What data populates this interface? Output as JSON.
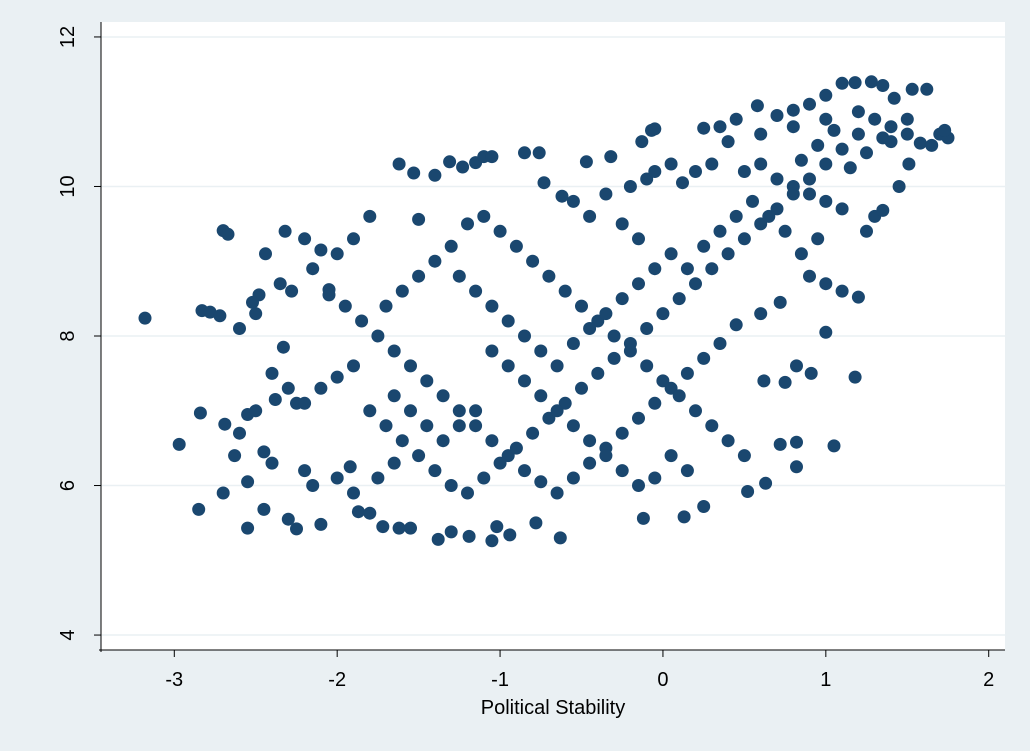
{
  "chart_data": {
    "type": "scatter",
    "title": "",
    "xlabel": "Political Stability",
    "ylabel": "",
    "xlim": [
      -3.45,
      2.1
    ],
    "ylim": [
      3.8,
      12.2
    ],
    "xticks": [
      -3,
      -2,
      -1,
      0,
      1,
      2
    ],
    "yticks": [
      4,
      6,
      8,
      10,
      12
    ],
    "xtick_labels": [
      "-3",
      "-2",
      "-1",
      "0",
      "1",
      "2"
    ],
    "ytick_labels": [
      "4",
      "6",
      "8",
      "10",
      "12"
    ],
    "grid": "horizontal",
    "legend": "none",
    "colors": {
      "background": "#eaf0f3",
      "plot_background": "#ffffff",
      "marker": "#1a476f",
      "grid": "#eaf0f3"
    },
    "series": [
      {
        "points": [
          [
            -3.18,
            8.24
          ],
          [
            -2.97,
            6.55
          ],
          [
            -2.85,
            5.68
          ],
          [
            -2.83,
            8.34
          ],
          [
            -2.78,
            8.32
          ],
          [
            -2.72,
            8.27
          ],
          [
            -2.7,
            9.41
          ],
          [
            -2.67,
            9.36
          ],
          [
            -2.84,
            6.97
          ],
          [
            -2.69,
            6.82
          ],
          [
            -2.55,
            6.95
          ],
          [
            -2.63,
            6.4
          ],
          [
            -2.55,
            6.05
          ],
          [
            -2.7,
            5.9
          ],
          [
            -2.55,
            5.43
          ],
          [
            -2.45,
            5.68
          ],
          [
            -2.38,
            7.15
          ],
          [
            -2.45,
            6.45
          ],
          [
            -2.33,
            7.85
          ],
          [
            -2.25,
            7.1
          ],
          [
            -2.28,
            8.6
          ],
          [
            -2.48,
            8.55
          ],
          [
            -2.52,
            8.45
          ],
          [
            -2.44,
            9.1
          ],
          [
            -2.32,
            9.4
          ],
          [
            -2.2,
            9.3
          ],
          [
            -2.1,
            9.15
          ],
          [
            -2.05,
            8.62
          ],
          [
            -2.25,
            5.42
          ],
          [
            -2.3,
            5.55
          ],
          [
            -2.15,
            6.0
          ],
          [
            -2.1,
            5.48
          ],
          [
            -1.92,
            6.25
          ],
          [
            -1.87,
            5.65
          ],
          [
            -1.8,
            5.63
          ],
          [
            -1.72,
            5.45
          ],
          [
            -1.62,
            5.43
          ],
          [
            -1.55,
            5.43
          ],
          [
            -1.62,
            10.3
          ],
          [
            -1.53,
            10.18
          ],
          [
            -1.5,
            9.56
          ],
          [
            -1.4,
            10.15
          ],
          [
            -1.31,
            10.33
          ],
          [
            -1.23,
            10.26
          ],
          [
            -1.15,
            10.32
          ],
          [
            -1.1,
            10.4
          ],
          [
            -1.05,
            10.4
          ],
          [
            -0.85,
            10.45
          ],
          [
            -0.76,
            10.45
          ],
          [
            -0.73,
            10.05
          ],
          [
            -0.62,
            9.87
          ],
          [
            -0.47,
            10.33
          ],
          [
            -0.32,
            10.4
          ],
          [
            -0.13,
            10.6
          ],
          [
            -0.07,
            10.75
          ],
          [
            -0.05,
            10.77
          ],
          [
            -1.38,
            5.28
          ],
          [
            -1.3,
            5.38
          ],
          [
            -1.19,
            5.32
          ],
          [
            -1.05,
            5.26
          ],
          [
            -0.94,
            5.34
          ],
          [
            -0.78,
            5.5
          ],
          [
            -0.63,
            5.3
          ],
          [
            -1.02,
            5.45
          ],
          [
            -0.12,
            5.56
          ],
          [
            0.13,
            5.58
          ],
          [
            0.25,
            5.72
          ],
          [
            0.52,
            5.92
          ],
          [
            0.63,
            6.03
          ],
          [
            0.72,
            6.55
          ],
          [
            0.82,
            6.25
          ],
          [
            0.82,
            6.58
          ],
          [
            1.05,
            6.53
          ],
          [
            0.62,
            7.4
          ],
          [
            0.75,
            7.38
          ],
          [
            0.82,
            7.6
          ],
          [
            0.91,
            7.5
          ],
          [
            1.0,
            8.05
          ],
          [
            1.18,
            7.45
          ],
          [
            1.2,
            8.52
          ],
          [
            1.3,
            9.6
          ],
          [
            1.35,
            9.68
          ],
          [
            1.25,
            9.4
          ],
          [
            1.45,
            10.0
          ],
          [
            1.51,
            10.3
          ],
          [
            1.58,
            10.58
          ],
          [
            1.62,
            11.3
          ],
          [
            1.53,
            11.3
          ],
          [
            1.42,
            11.18
          ],
          [
            1.35,
            11.35
          ],
          [
            1.28,
            11.4
          ],
          [
            1.18,
            11.39
          ],
          [
            1.1,
            11.38
          ],
          [
            1.0,
            11.22
          ],
          [
            0.9,
            11.1
          ],
          [
            0.8,
            11.02
          ],
          [
            0.7,
            10.95
          ],
          [
            0.58,
            11.08
          ],
          [
            0.45,
            10.9
          ],
          [
            0.35,
            10.8
          ],
          [
            0.25,
            10.78
          ],
          [
            1.7,
            10.7
          ],
          [
            1.75,
            10.65
          ],
          [
            1.73,
            10.75
          ],
          [
            1.65,
            10.55
          ],
          [
            0.3,
            10.3
          ],
          [
            0.2,
            10.2
          ],
          [
            0.12,
            10.05
          ],
          [
            -0.2,
            10.0
          ],
          [
            -0.1,
            10.1
          ],
          [
            -0.05,
            10.2
          ],
          [
            0.05,
            10.3
          ],
          [
            0.5,
            10.2
          ],
          [
            0.6,
            10.3
          ],
          [
            0.7,
            10.1
          ],
          [
            0.8,
            10.0
          ],
          [
            0.9,
            9.9
          ],
          [
            1.0,
            9.8
          ],
          [
            1.1,
            9.7
          ],
          [
            0.95,
            9.3
          ],
          [
            0.85,
            9.1
          ],
          [
            0.9,
            8.8
          ],
          [
            1.0,
            8.7
          ],
          [
            1.1,
            8.6
          ],
          [
            0.72,
            8.45
          ],
          [
            0.6,
            8.3
          ],
          [
            0.45,
            8.15
          ],
          [
            0.35,
            7.9
          ],
          [
            0.25,
            7.7
          ],
          [
            0.15,
            7.5
          ],
          [
            0.05,
            7.3
          ],
          [
            -0.05,
            7.1
          ],
          [
            -0.15,
            6.9
          ],
          [
            -0.25,
            6.7
          ],
          [
            -0.35,
            6.5
          ],
          [
            -0.45,
            6.3
          ],
          [
            -0.55,
            6.1
          ],
          [
            -0.65,
            5.9
          ],
          [
            -0.75,
            6.05
          ],
          [
            -0.85,
            6.2
          ],
          [
            -0.95,
            6.4
          ],
          [
            -1.05,
            6.6
          ],
          [
            -1.15,
            6.8
          ],
          [
            -1.25,
            7.0
          ],
          [
            -1.35,
            7.2
          ],
          [
            -1.45,
            7.4
          ],
          [
            -1.55,
            7.6
          ],
          [
            -1.65,
            7.8
          ],
          [
            -1.75,
            8.0
          ],
          [
            -1.85,
            8.2
          ],
          [
            -1.95,
            8.4
          ],
          [
            -2.05,
            8.55
          ],
          [
            -1.9,
            7.6
          ],
          [
            -2.0,
            7.45
          ],
          [
            -2.1,
            7.3
          ],
          [
            -2.2,
            7.1
          ],
          [
            -1.8,
            7.0
          ],
          [
            -1.7,
            6.8
          ],
          [
            -1.6,
            6.6
          ],
          [
            -1.5,
            6.4
          ],
          [
            -1.4,
            6.2
          ],
          [
            -1.3,
            6.0
          ],
          [
            -1.2,
            5.9
          ],
          [
            -1.1,
            6.1
          ],
          [
            -1.0,
            6.3
          ],
          [
            -0.9,
            6.5
          ],
          [
            -0.8,
            6.7
          ],
          [
            -0.7,
            6.9
          ],
          [
            -0.6,
            7.1
          ],
          [
            -0.5,
            7.3
          ],
          [
            -0.4,
            7.5
          ],
          [
            -0.3,
            7.7
          ],
          [
            -0.2,
            7.9
          ],
          [
            -0.1,
            8.1
          ],
          [
            0.0,
            8.3
          ],
          [
            0.1,
            8.5
          ],
          [
            0.2,
            8.7
          ],
          [
            0.3,
            8.9
          ],
          [
            0.4,
            9.1
          ],
          [
            0.5,
            9.3
          ],
          [
            0.6,
            9.5
          ],
          [
            0.7,
            9.7
          ],
          [
            0.8,
            9.9
          ],
          [
            0.9,
            10.1
          ],
          [
            1.0,
            10.3
          ],
          [
            1.1,
            10.5
          ],
          [
            1.2,
            10.7
          ],
          [
            1.3,
            10.9
          ],
          [
            1.4,
            10.8
          ],
          [
            1.5,
            10.7
          ],
          [
            -0.9,
            9.2
          ],
          [
            -0.8,
            9.0
          ],
          [
            -0.7,
            8.8
          ],
          [
            -0.6,
            8.6
          ],
          [
            -0.5,
            8.4
          ],
          [
            -0.4,
            8.2
          ],
          [
            -0.3,
            8.0
          ],
          [
            -0.2,
            7.8
          ],
          [
            -0.1,
            7.6
          ],
          [
            0.0,
            7.4
          ],
          [
            0.1,
            7.2
          ],
          [
            0.2,
            7.0
          ],
          [
            0.3,
            6.8
          ],
          [
            0.4,
            6.6
          ],
          [
            0.5,
            6.4
          ],
          [
            -1.0,
            9.4
          ],
          [
            -1.1,
            9.6
          ],
          [
            -1.2,
            9.5
          ],
          [
            -1.3,
            9.2
          ],
          [
            -1.4,
            9.0
          ],
          [
            -1.5,
            8.8
          ],
          [
            -1.6,
            8.6
          ],
          [
            -1.7,
            8.4
          ],
          [
            -1.8,
            9.6
          ],
          [
            -1.9,
            9.3
          ],
          [
            -2.0,
            9.1
          ],
          [
            -2.15,
            8.9
          ],
          [
            -2.35,
            8.7
          ],
          [
            -2.5,
            8.3
          ],
          [
            -2.6,
            8.1
          ],
          [
            -2.4,
            7.5
          ],
          [
            -2.3,
            7.3
          ],
          [
            -2.5,
            7.0
          ],
          [
            -2.6,
            6.7
          ],
          [
            -2.4,
            6.3
          ],
          [
            -2.2,
            6.2
          ],
          [
            -2.0,
            6.1
          ],
          [
            -1.9,
            5.9
          ],
          [
            -1.75,
            6.1
          ],
          [
            -1.65,
            6.3
          ],
          [
            -0.35,
            9.9
          ],
          [
            -0.55,
            9.8
          ],
          [
            -0.45,
            9.6
          ],
          [
            -0.25,
            9.5
          ],
          [
            -0.15,
            9.3
          ],
          [
            0.05,
            9.1
          ],
          [
            0.15,
            8.9
          ],
          [
            0.25,
            9.2
          ],
          [
            0.35,
            9.4
          ],
          [
            0.45,
            9.6
          ],
          [
            0.55,
            9.8
          ],
          [
            0.65,
            9.6
          ],
          [
            0.75,
            9.4
          ],
          [
            -0.65,
            7.6
          ],
          [
            -0.75,
            7.8
          ],
          [
            -0.85,
            8.0
          ],
          [
            -0.95,
            8.2
          ],
          [
            -1.05,
            8.4
          ],
          [
            -1.15,
            8.6
          ],
          [
            -1.25,
            8.8
          ],
          [
            -0.55,
            7.9
          ],
          [
            -0.45,
            8.1
          ],
          [
            -0.35,
            8.3
          ],
          [
            -0.25,
            8.5
          ],
          [
            -0.15,
            8.7
          ],
          [
            -0.05,
            8.9
          ],
          [
            0.05,
            6.4
          ],
          [
            0.15,
            6.2
          ],
          [
            -0.05,
            6.1
          ],
          [
            -0.15,
            6.0
          ],
          [
            -0.25,
            6.2
          ],
          [
            -0.35,
            6.4
          ],
          [
            -0.45,
            6.6
          ],
          [
            -0.55,
            6.8
          ],
          [
            -0.65,
            7.0
          ],
          [
            -0.75,
            7.2
          ],
          [
            -0.85,
            7.4
          ],
          [
            -0.95,
            7.6
          ],
          [
            -1.05,
            7.8
          ],
          [
            -1.15,
            7.0
          ],
          [
            -1.25,
            6.8
          ],
          [
            -1.35,
            6.6
          ],
          [
            -1.45,
            6.8
          ],
          [
            -1.55,
            7.0
          ],
          [
            -1.65,
            7.2
          ],
          [
            0.4,
            10.6
          ],
          [
            0.6,
            10.7
          ],
          [
            0.8,
            10.8
          ],
          [
            1.0,
            10.9
          ],
          [
            1.2,
            11.0
          ],
          [
            1.4,
            10.6
          ],
          [
            1.5,
            10.9
          ],
          [
            1.05,
            10.75
          ],
          [
            0.95,
            10.55
          ],
          [
            0.85,
            10.35
          ],
          [
            1.15,
            10.25
          ],
          [
            1.25,
            10.45
          ],
          [
            1.35,
            10.65
          ]
        ]
      }
    ]
  }
}
